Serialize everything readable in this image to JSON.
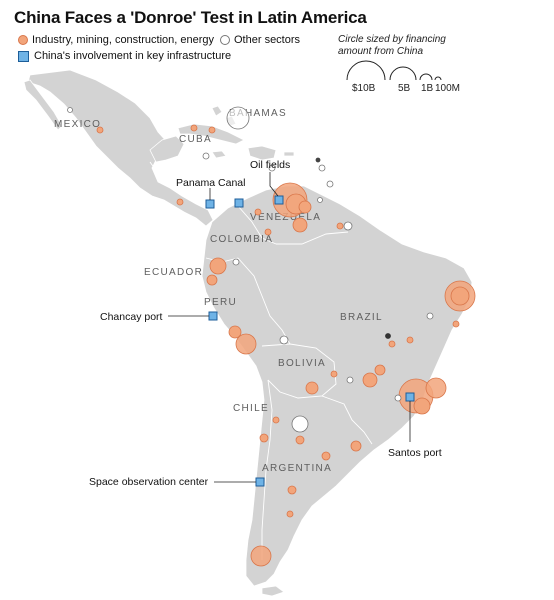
{
  "title": "China Faces a 'Donroe' Test in Latin America",
  "legend": {
    "industry_label": "Industry, mining, construction, energy",
    "other_label": "Other sectors",
    "infra_label": "China's involvement in key infrastructure",
    "size_title_line1": "Circle sized by financing",
    "size_title_line2": "amount from China",
    "size_labels": [
      "$10B",
      "5B",
      "1B",
      "100M"
    ]
  },
  "colors": {
    "industry_fill": "#f2a57b",
    "industry_stroke": "#d9764a",
    "other_fill": "#ffffff",
    "other_stroke": "#777777",
    "infra_fill": "#6fb3e6",
    "infra_stroke": "#1d5e99",
    "land": "#d3d3d3",
    "sea": "#ffffff"
  },
  "countries": {
    "mexico": "MEXICO",
    "bahamas": "BAHAMAS",
    "cuba": "CUBA",
    "venezuela": "VENEZUELA",
    "colombia": "COLOMBIA",
    "ecuador": "ECUADOR",
    "peru": "PERU",
    "brazil": "BRAZIL",
    "bolivia": "BOLIVIA",
    "chile": "CHILE",
    "argentina": "ARGENTINA"
  },
  "callouts": {
    "oil_fields": "Oil fields",
    "panama_canal": "Panama Canal",
    "chancay_port": "Chancay port",
    "santos_port": "Santos port",
    "space_center": "Space observation center"
  }
}
